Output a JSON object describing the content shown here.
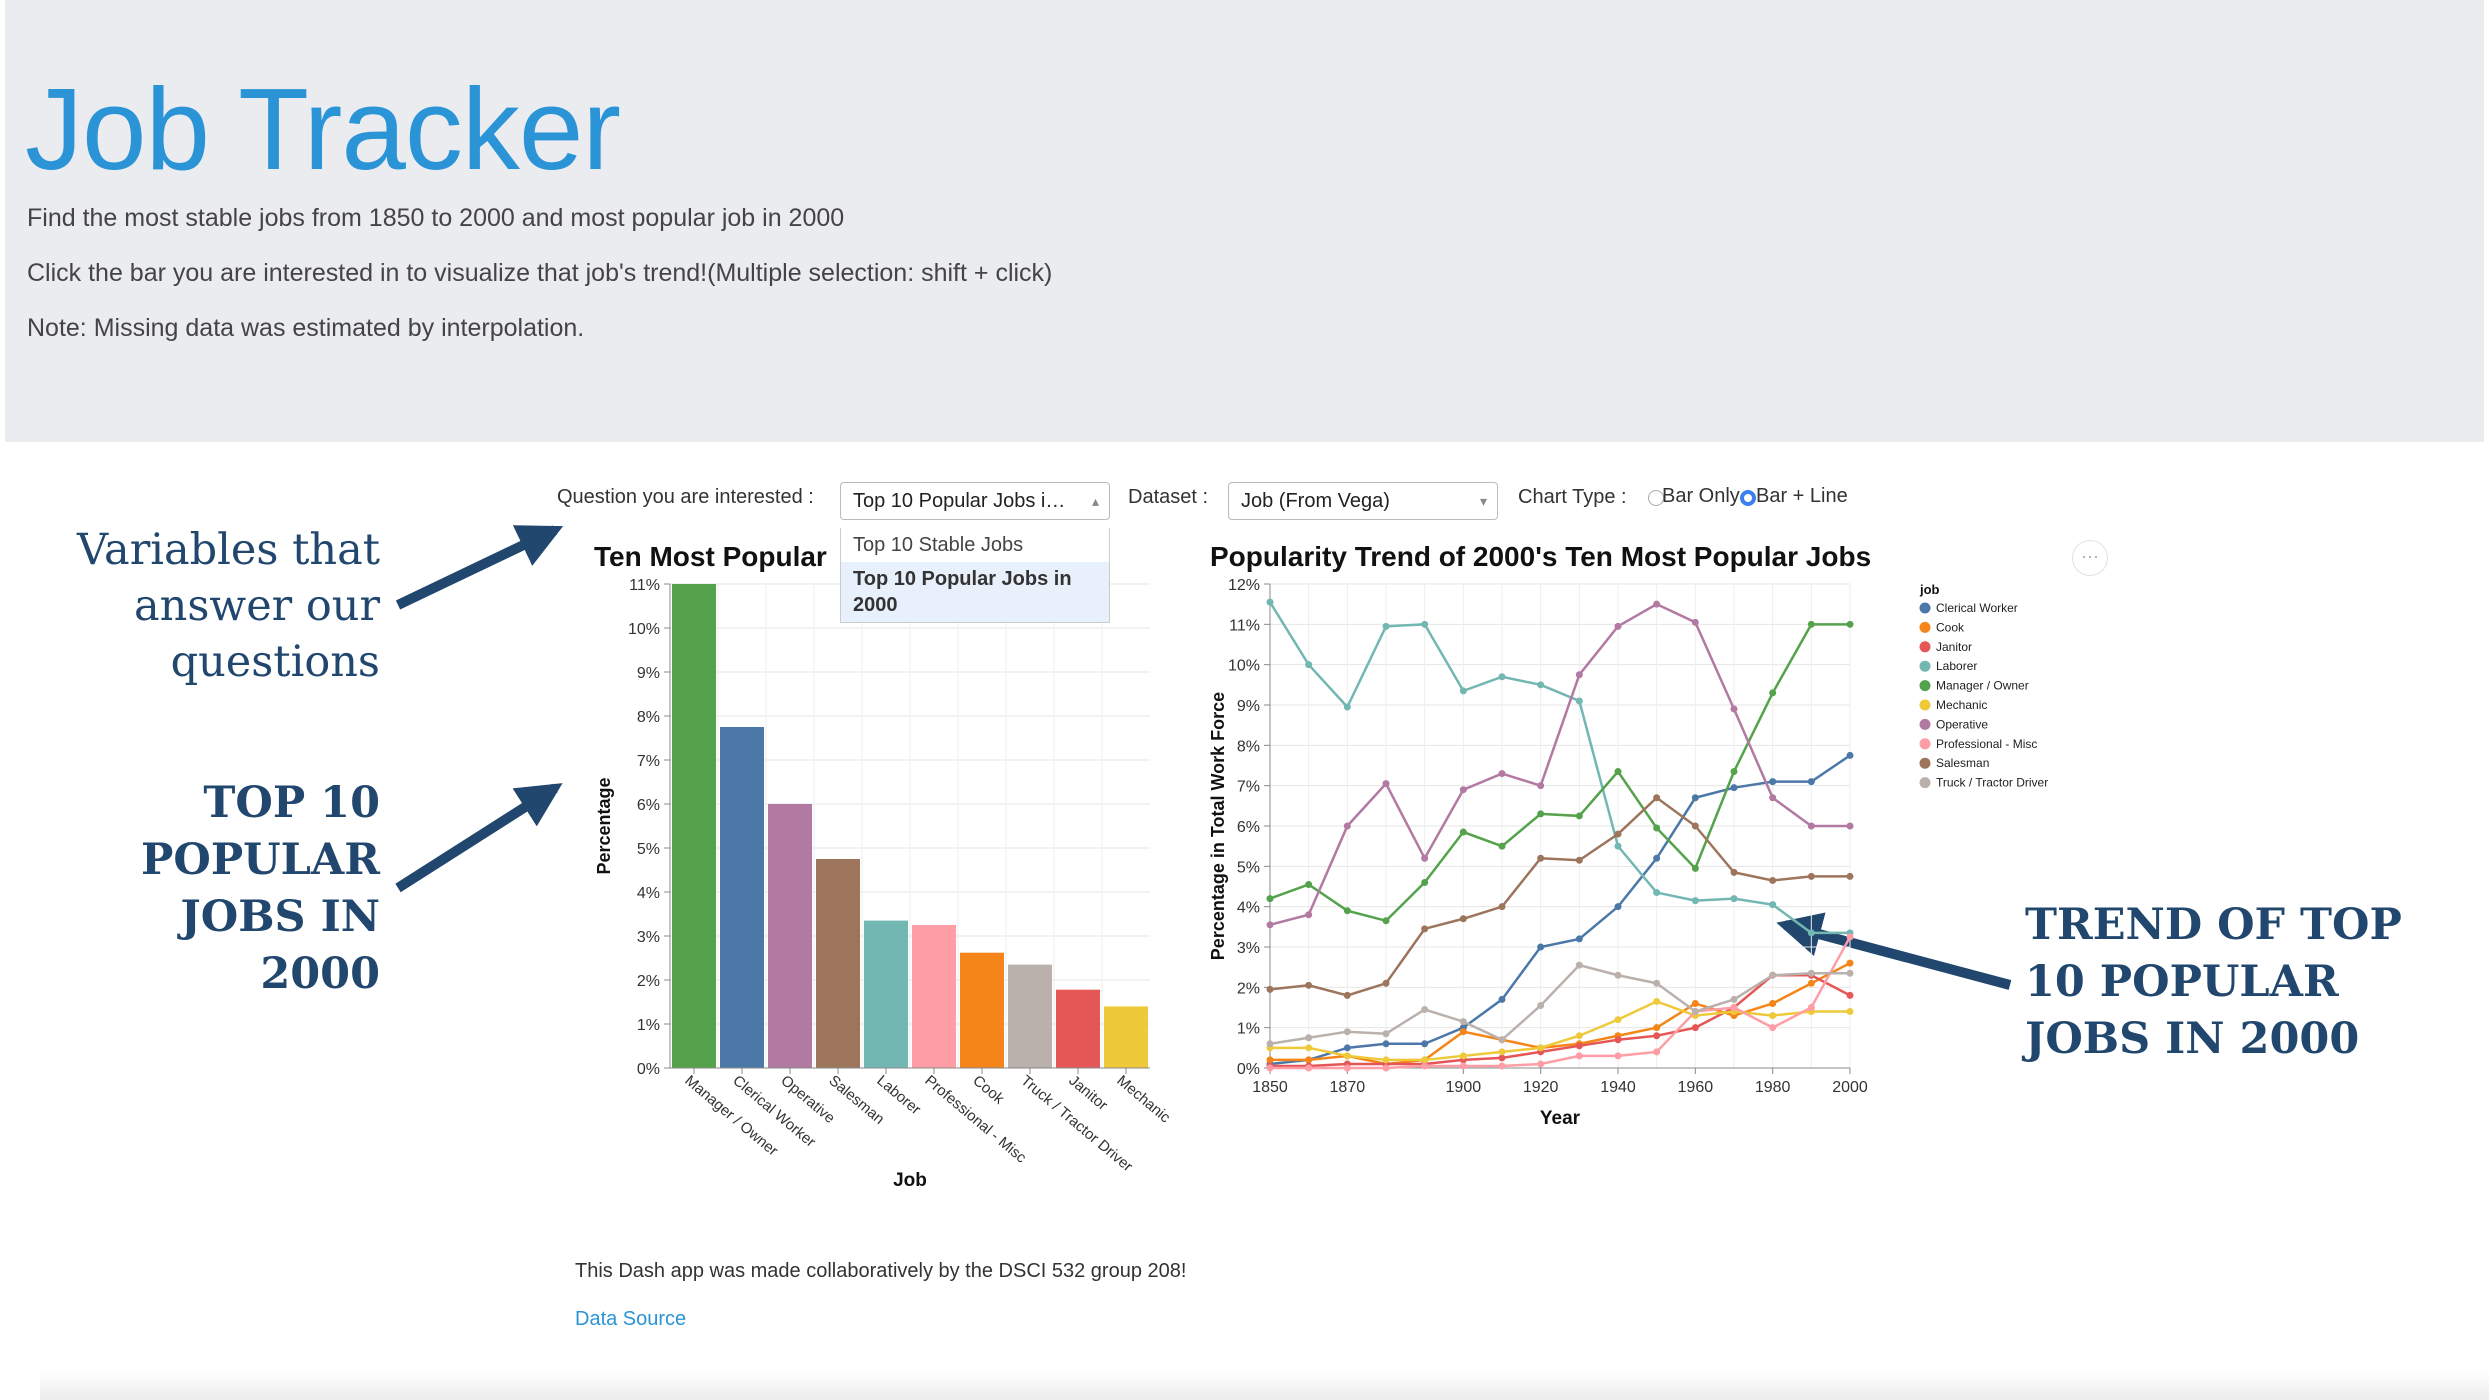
{
  "header": {
    "title": "Job Tracker",
    "lines": [
      "Find the most stable jobs from 1850 to 2000 and most popular job in 2000",
      "Click the bar you are interested in to visualize that job's trend!(Multiple selection: shift + click)",
      "Note: Missing data was estimated by interpolation."
    ]
  },
  "controls": {
    "question_label": "Question you are interested :",
    "question_value": "Top 10 Popular Jobs in 2000",
    "question_options": [
      "Top 10 Stable Jobs",
      "Top 10 Popular Jobs in 2000"
    ],
    "dataset_label": "Dataset :",
    "dataset_value": "Job (From Vega)",
    "chart_type_label": "Chart Type :",
    "chart_type_options": [
      "Bar Only",
      "Bar + Line"
    ],
    "chart_type_selected": "Bar + Line"
  },
  "annotations": {
    "variables": [
      "Variables that",
      "answer our",
      "questions"
    ],
    "top10": [
      "TOP 10",
      "POPULAR",
      "JOBS IN",
      "2000"
    ],
    "trend": [
      "TREND OF TOP",
      "10 POPULAR",
      "JOBS IN 2000"
    ]
  },
  "chart_data": [
    {
      "type": "bar",
      "title": "Ten Most Popular",
      "xlabel": "Job",
      "ylabel": "Percentage",
      "ylim": [
        0,
        11
      ],
      "yticks": [
        "0%",
        "1%",
        "2%",
        "3%",
        "4%",
        "5%",
        "6%",
        "7%",
        "8%",
        "9%",
        "10%",
        "11%"
      ],
      "categories": [
        "Manager / Owner",
        "Clerical Worker",
        "Operative",
        "Salesman",
        "Laborer",
        "Professional - Misc",
        "Cook",
        "Truck / Tractor Driver",
        "Janitor",
        "Mechanic"
      ],
      "values": [
        11.0,
        7.75,
        6.0,
        4.75,
        3.35,
        3.25,
        2.62,
        2.35,
        1.78,
        1.4
      ],
      "colors": [
        "#54a24b",
        "#4c78a8",
        "#b279a2",
        "#9d755d",
        "#72b7b2",
        "#ff9da6",
        "#f58518",
        "#bab0ac",
        "#e45756",
        "#eeca3b"
      ],
      "grid": true
    },
    {
      "type": "line",
      "title": "Popularity Trend of 2000's Ten Most Popular Jobs",
      "xlabel": "Year",
      "ylabel": "Percentage in Total Work Force",
      "xlim": [
        1850,
        2000
      ],
      "ylim": [
        0,
        12
      ],
      "xticks": [
        "1850",
        "1870",
        "1900",
        "1920",
        "1940",
        "1960",
        "1980",
        "2000"
      ],
      "yticks": [
        "0%",
        "1%",
        "2%",
        "3%",
        "4%",
        "5%",
        "6%",
        "7%",
        "8%",
        "9%",
        "10%",
        "11%",
        "12%"
      ],
      "x": [
        1850,
        1860,
        1870,
        1880,
        1890,
        1900,
        1910,
        1920,
        1930,
        1940,
        1950,
        1960,
        1970,
        1980,
        1990,
        2000
      ],
      "legend_title": "job",
      "legend_position": "right",
      "grid": true,
      "series": [
        {
          "name": "Clerical Worker",
          "color": "#4c78a8",
          "values": [
            0.1,
            0.2,
            0.5,
            0.6,
            0.6,
            1.0,
            1.7,
            3.0,
            3.2,
            4.0,
            5.2,
            6.7,
            6.95,
            7.1,
            7.1,
            7.75
          ]
        },
        {
          "name": "Cook",
          "color": "#f58518",
          "values": [
            0.2,
            0.2,
            0.3,
            0.1,
            0.2,
            0.9,
            0.7,
            0.5,
            0.6,
            0.8,
            1.0,
            1.6,
            1.3,
            1.6,
            2.1,
            2.6
          ]
        },
        {
          "name": "Janitor",
          "color": "#e45756",
          "values": [
            0.05,
            0.05,
            0.1,
            0.1,
            0.1,
            0.2,
            0.25,
            0.4,
            0.55,
            0.7,
            0.8,
            1.0,
            1.5,
            2.3,
            2.3,
            1.8
          ]
        },
        {
          "name": "Laborer",
          "color": "#72b7b2",
          "values": [
            11.55,
            10.0,
            8.95,
            10.95,
            11.0,
            9.35,
            9.7,
            9.5,
            9.1,
            5.5,
            4.35,
            4.15,
            4.2,
            4.05,
            3.35,
            3.35
          ]
        },
        {
          "name": "Manager / Owner",
          "color": "#54a24b",
          "values": [
            4.2,
            4.55,
            3.9,
            3.65,
            4.6,
            5.85,
            5.5,
            6.3,
            6.25,
            7.35,
            5.95,
            4.95,
            7.35,
            9.3,
            11.0,
            11.0
          ]
        },
        {
          "name": "Mechanic",
          "color": "#eeca3b",
          "values": [
            0.5,
            0.5,
            0.3,
            0.2,
            0.2,
            0.3,
            0.4,
            0.5,
            0.8,
            1.2,
            1.65,
            1.3,
            1.4,
            1.3,
            1.4,
            1.4
          ]
        },
        {
          "name": "Operative",
          "color": "#b279a2",
          "values": [
            3.55,
            3.8,
            6.0,
            7.05,
            5.2,
            6.9,
            7.3,
            7.0,
            9.75,
            10.95,
            11.5,
            11.05,
            8.9,
            6.7,
            6.0,
            6.0
          ]
        },
        {
          "name": "Professional - Misc",
          "color": "#ff9da6",
          "values": [
            0.0,
            0.0,
            0.0,
            0.0,
            0.05,
            0.05,
            0.05,
            0.1,
            0.3,
            0.3,
            0.4,
            1.4,
            1.5,
            1.0,
            1.5,
            3.25
          ]
        },
        {
          "name": "Salesman",
          "color": "#9d755d",
          "values": [
            1.95,
            2.05,
            1.8,
            2.1,
            3.45,
            3.7,
            4.0,
            5.2,
            5.15,
            5.8,
            6.7,
            6.0,
            4.85,
            4.65,
            4.75,
            4.75
          ]
        },
        {
          "name": "Truck / Tractor Driver",
          "color": "#bab0ac",
          "values": [
            0.6,
            0.75,
            0.9,
            0.85,
            1.45,
            1.15,
            0.7,
            1.55,
            2.55,
            2.3,
            2.1,
            1.4,
            1.7,
            2.3,
            2.35,
            2.35
          ]
        }
      ]
    }
  ],
  "footer": {
    "credit": "This Dash app was made collaboratively by the DSCI 532 group 208!",
    "link_text": "Data Source"
  },
  "icons": {
    "more": "ellipsis-icon",
    "caret_up": "chevron-up-icon",
    "caret_down": "chevron-down-icon"
  }
}
